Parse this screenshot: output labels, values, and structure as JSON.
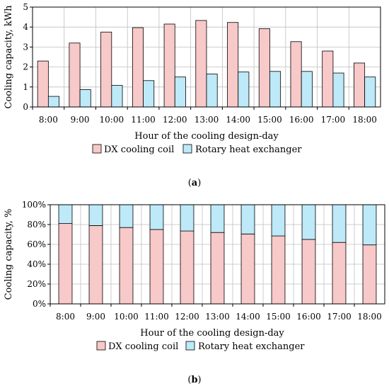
{
  "colors": {
    "dx": "#F8C9C9",
    "rotary": "#BDE9F8",
    "stroke": "#000000",
    "grid": "#bfbfbf"
  },
  "chart_data": [
    {
      "type": "bar",
      "panel_label": "(a)",
      "panel_letter": "a",
      "categories": [
        "8:00",
        "9:00",
        "10:00",
        "11:00",
        "12:00",
        "13:00",
        "14:00",
        "15:00",
        "16:00",
        "17:00",
        "18:00"
      ],
      "series": [
        {
          "name": "DX cooling coil",
          "values": [
            2.3,
            3.2,
            3.75,
            3.97,
            4.15,
            4.33,
            4.23,
            3.92,
            3.27,
            2.8,
            2.2
          ]
        },
        {
          "name": "Rotary heat exchanger",
          "values": [
            0.53,
            0.87,
            1.08,
            1.32,
            1.5,
            1.65,
            1.75,
            1.78,
            1.78,
            1.7,
            1.5
          ]
        }
      ],
      "xlabel": "Hour of the cooling design-day",
      "ylabel": "Cooling capacity, kWh",
      "ylim": [
        0,
        5
      ],
      "yticks": [
        "0",
        "1",
        "2",
        "3",
        "4",
        "5"
      ],
      "grid": true,
      "legend": "bottom"
    },
    {
      "type": "bar",
      "stacked": true,
      "percent": true,
      "panel_label": "(b)",
      "panel_letter": "b",
      "categories": [
        "8:00",
        "9:00",
        "10:00",
        "11:00",
        "12:00",
        "13:00",
        "14:00",
        "15:00",
        "16:00",
        "17:00",
        "18:00"
      ],
      "series": [
        {
          "name": "DX cooling coil",
          "values": [
            81,
            79,
            77,
            75,
            73.5,
            72,
            70.5,
            68.5,
            65,
            62,
            59.5
          ]
        },
        {
          "name": "Rotary heat exchanger",
          "values": [
            19,
            21,
            23,
            25,
            26.5,
            28,
            29.5,
            31.5,
            35,
            38,
            40.5
          ]
        }
      ],
      "xlabel": "Hour of the cooling design-day",
      "ylabel": "Cooling capacity, %",
      "ylim": [
        0,
        100
      ],
      "yticks": [
        "0%",
        "20%",
        "40%",
        "60%",
        "80%",
        "100%"
      ],
      "grid": true,
      "legend": "bottom"
    }
  ]
}
